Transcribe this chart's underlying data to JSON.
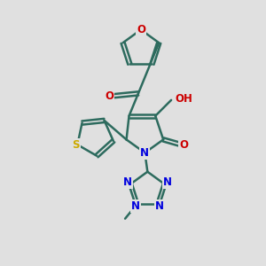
{
  "background_color": "#e0e0e0",
  "bond_color": "#2d6b5e",
  "bond_width": 1.8,
  "figsize": [
    3.0,
    3.0
  ],
  "dpi": 100,
  "atom_colors": {
    "O": "#cc0000",
    "N": "#0000dd",
    "S": "#ccaa00",
    "C": "#2d6b5e"
  },
  "font_size": 8.5
}
